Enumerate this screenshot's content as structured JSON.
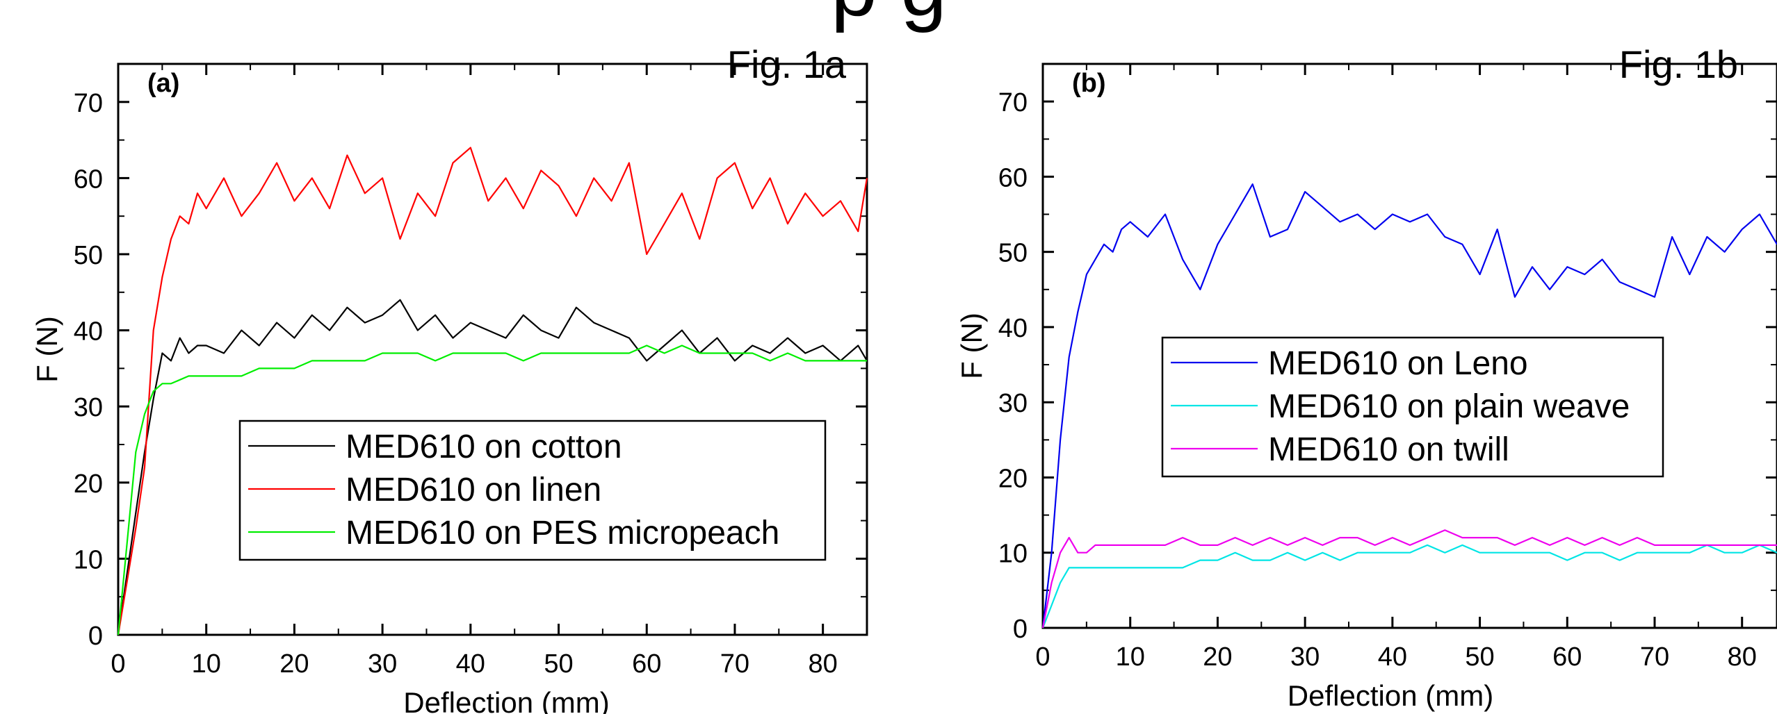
{
  "header_fragment": "p g",
  "chart_data": [
    {
      "type": "line",
      "panel_label": "(a)",
      "fig_label": "Fig. 1a",
      "xlabel": "Deflection (mm)",
      "ylabel": "F (N)",
      "xlim": [
        0,
        85
      ],
      "ylim": [
        0,
        75
      ],
      "xticks": [
        0,
        10,
        20,
        30,
        40,
        50,
        60,
        70,
        80
      ],
      "yticks": [
        0,
        10,
        20,
        30,
        40,
        50,
        60,
        70
      ],
      "legend_position": "lower-right",
      "grid": false,
      "series": [
        {
          "name": "MED610 on cotton",
          "color": "#000000",
          "x": [
            0,
            1,
            2,
            3,
            4,
            5,
            6,
            7,
            8,
            9,
            10,
            12,
            14,
            16,
            18,
            20,
            22,
            24,
            26,
            28,
            30,
            32,
            34,
            36,
            38,
            40,
            42,
            44,
            46,
            48,
            50,
            52,
            54,
            56,
            58,
            60,
            62,
            64,
            66,
            68,
            70,
            72,
            74,
            76,
            78,
            80,
            82,
            84,
            85
          ],
          "y": [
            0,
            8,
            16,
            24,
            31,
            37,
            36,
            39,
            37,
            38,
            38,
            37,
            40,
            38,
            41,
            39,
            42,
            40,
            43,
            41,
            42,
            44,
            40,
            42,
            39,
            41,
            40,
            39,
            42,
            40,
            39,
            43,
            41,
            40,
            39,
            36,
            38,
            40,
            37,
            39,
            36,
            38,
            37,
            39,
            37,
            38,
            36,
            38,
            36
          ]
        },
        {
          "name": "MED610 on linen",
          "color": "#ff0000",
          "x": [
            0,
            1,
            2,
            3,
            4,
            5,
            6,
            7,
            8,
            9,
            10,
            12,
            14,
            16,
            18,
            20,
            22,
            24,
            26,
            28,
            30,
            32,
            34,
            36,
            38,
            40,
            42,
            44,
            46,
            48,
            50,
            52,
            54,
            56,
            58,
            60,
            62,
            64,
            66,
            68,
            70,
            72,
            74,
            76,
            78,
            80,
            82,
            84,
            85
          ],
          "y": [
            0,
            7,
            14,
            22,
            40,
            47,
            52,
            55,
            54,
            58,
            56,
            60,
            55,
            58,
            62,
            57,
            60,
            56,
            63,
            58,
            60,
            52,
            58,
            55,
            62,
            64,
            57,
            60,
            56,
            61,
            59,
            55,
            60,
            57,
            62,
            50,
            54,
            58,
            52,
            60,
            62,
            56,
            60,
            54,
            58,
            55,
            57,
            53,
            60
          ]
        },
        {
          "name": "MED610 on PES micropeach",
          "color": "#00ee00",
          "x": [
            0,
            1,
            2,
            3,
            4,
            5,
            6,
            8,
            10,
            12,
            14,
            16,
            18,
            20,
            22,
            24,
            26,
            28,
            30,
            32,
            34,
            36,
            38,
            40,
            42,
            44,
            46,
            48,
            50,
            52,
            54,
            56,
            58,
            60,
            62,
            64,
            66,
            68,
            70,
            72,
            74,
            76,
            78,
            80,
            82,
            84,
            85
          ],
          "y": [
            0,
            12,
            24,
            29,
            32,
            33,
            33,
            34,
            34,
            34,
            34,
            35,
            35,
            35,
            36,
            36,
            36,
            36,
            37,
            37,
            37,
            36,
            37,
            37,
            37,
            37,
            36,
            37,
            37,
            37,
            37,
            37,
            37,
            38,
            37,
            38,
            37,
            37,
            37,
            37,
            36,
            37,
            36,
            36,
            36,
            36,
            36
          ]
        }
      ]
    },
    {
      "type": "line",
      "panel_label": "(b)",
      "fig_label": "Fig. 1b",
      "xlabel": "Deflection (mm)",
      "ylabel": "F (N)",
      "xlim": [
        0,
        84
      ],
      "ylim": [
        0,
        75
      ],
      "xticks": [
        0,
        10,
        20,
        30,
        40,
        50,
        60,
        70,
        80
      ],
      "yticks": [
        0,
        10,
        20,
        30,
        40,
        50,
        60,
        70
      ],
      "legend_position": "center-left",
      "grid": false,
      "series": [
        {
          "name": "MED610 on Leno",
          "color": "#0000ee",
          "x": [
            0,
            1,
            2,
            3,
            4,
            5,
            6,
            7,
            8,
            9,
            10,
            12,
            14,
            16,
            18,
            20,
            22,
            24,
            26,
            28,
            30,
            32,
            34,
            36,
            38,
            40,
            42,
            44,
            46,
            48,
            50,
            52,
            54,
            56,
            58,
            60,
            62,
            64,
            66,
            68,
            70,
            72,
            74,
            76,
            78,
            80,
            82,
            84
          ],
          "y": [
            0,
            10,
            25,
            36,
            42,
            47,
            49,
            51,
            50,
            53,
            54,
            52,
            55,
            49,
            45,
            51,
            55,
            59,
            52,
            53,
            58,
            56,
            54,
            55,
            53,
            55,
            54,
            55,
            52,
            51,
            47,
            53,
            44,
            48,
            45,
            48,
            47,
            49,
            46,
            45,
            44,
            52,
            47,
            52,
            50,
            53,
            55,
            51
          ]
        },
        {
          "name": "MED610 on plain weave",
          "color": "#00e5e5",
          "x": [
            0,
            1,
            2,
            3,
            4,
            5,
            6,
            8,
            10,
            12,
            14,
            16,
            18,
            20,
            22,
            24,
            26,
            28,
            30,
            32,
            34,
            36,
            38,
            40,
            42,
            44,
            46,
            48,
            50,
            52,
            54,
            56,
            58,
            60,
            62,
            64,
            66,
            68,
            70,
            72,
            74,
            76,
            78,
            80,
            82,
            84
          ],
          "y": [
            0,
            3,
            6,
            8,
            8,
            8,
            8,
            8,
            8,
            8,
            8,
            8,
            9,
            9,
            10,
            9,
            9,
            10,
            9,
            10,
            9,
            10,
            10,
            10,
            10,
            11,
            10,
            11,
            10,
            10,
            10,
            10,
            10,
            9,
            10,
            10,
            9,
            10,
            10,
            10,
            10,
            11,
            10,
            10,
            11,
            10
          ]
        },
        {
          "name": "MED610 on twill",
          "color": "#ee00ee",
          "x": [
            0,
            1,
            2,
            3,
            4,
            5,
            6,
            8,
            10,
            12,
            14,
            16,
            18,
            20,
            22,
            24,
            26,
            28,
            30,
            32,
            34,
            36,
            38,
            40,
            42,
            44,
            46,
            48,
            50,
            52,
            54,
            56,
            58,
            60,
            62,
            64,
            66,
            68,
            70,
            72,
            74,
            76,
            78,
            80,
            82,
            84
          ],
          "y": [
            0,
            6,
            10,
            12,
            10,
            10,
            11,
            11,
            11,
            11,
            11,
            12,
            11,
            11,
            12,
            11,
            12,
            11,
            12,
            11,
            12,
            12,
            11,
            12,
            11,
            12,
            13,
            12,
            12,
            12,
            11,
            12,
            11,
            12,
            11,
            12,
            11,
            12,
            11,
            11,
            11,
            11,
            11,
            11,
            11,
            11
          ]
        }
      ]
    }
  ]
}
